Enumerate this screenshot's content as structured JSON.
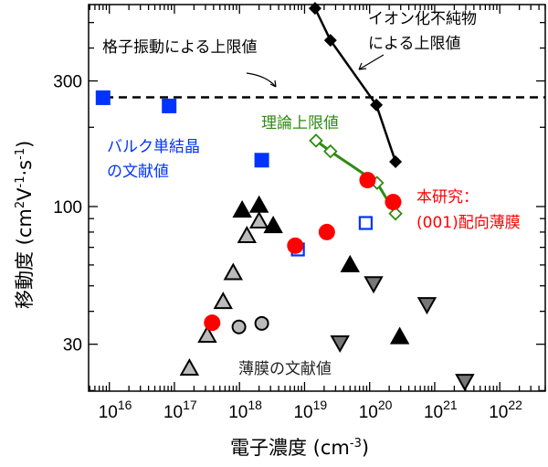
{
  "chart_data": {
    "type": "scatter",
    "xlabel": {
      "main": "電子濃度 (cm",
      "sup": "-3",
      "end": ")"
    },
    "ylabel": {
      "parts": [
        {
          "t": "移動度 (cm",
          "s": false
        },
        {
          "t": "2",
          "s": true
        },
        {
          "t": "V",
          "s": false
        },
        {
          "t": "-1",
          "s": true
        },
        {
          "t": "·s",
          "s": false
        },
        {
          "t": "-1",
          "s": true
        },
        {
          "t": ")",
          "s": false
        }
      ]
    },
    "x_scale": "log",
    "y_scale": "log",
    "xlim": [
      4800000000000000.0,
      5e+22
    ],
    "ylim": [
      19.9,
      585
    ],
    "grid": false,
    "x_ticks": [
      {
        "value": 1e+16,
        "base": "10",
        "exp": "16"
      },
      {
        "value": 1e+17,
        "base": "10",
        "exp": "17"
      },
      {
        "value": 1e+18,
        "base": "10",
        "exp": "18"
      },
      {
        "value": 1e+19,
        "base": "10",
        "exp": "19"
      },
      {
        "value": 1e+20,
        "base": "10",
        "exp": "20"
      },
      {
        "value": 1e+21,
        "base": "10",
        "exp": "21"
      },
      {
        "value": 1e+22,
        "base": "10",
        "exp": "22"
      }
    ],
    "y_ticks": [
      {
        "value": 30,
        "label": "30"
      },
      {
        "value": 100,
        "label": "100"
      },
      {
        "value": 300,
        "label": "300"
      }
    ],
    "reference_line": {
      "y": 260,
      "style": "dashed",
      "color": "#000000"
    },
    "series": [
      {
        "marker": "square-filled",
        "color": "#0033ff",
        "x": [
          8000000000000000.0,
          8.3e+16,
          2.2e+18
        ],
        "y": [
          259,
          241,
          150
        ]
      },
      {
        "marker": "square-open",
        "color": "#0033ff",
        "x": [
          7.9e+18,
          8.7e+19
        ],
        "y": [
          68.7,
          86.6
        ]
      },
      {
        "marker": "diamond-filled",
        "color": "#000000",
        "line": true,
        "x": [
          1.45e+19,
          2.5e+19,
          1.27e+20,
          2.5e+20
        ],
        "y": [
          566,
          428,
          243,
          148
        ]
      },
      {
        "marker": "diamond-open",
        "color": "#2e8b10",
        "line": true,
        "x": [
          1.5e+19,
          2.5e+19,
          1.3e+20,
          2.5e+20
        ],
        "y": [
          178,
          162,
          123,
          94
        ]
      },
      {
        "marker": "triangle-up",
        "color": "#bbbbbb",
        "x": [
          1.7e+17,
          3.2e+17,
          5.6e+17,
          8e+17,
          1.3e+18,
          2e+18
        ],
        "y": [
          24.3,
          32.4,
          43.5,
          56,
          77.4,
          88
        ]
      },
      {
        "marker": "triangle-up",
        "color": "#000000",
        "x": [
          1.1e+18,
          2e+18,
          3.3e+18,
          5e+19,
          2.9e+20
        ],
        "y": [
          96.8,
          101,
          84.5,
          60,
          32
        ]
      },
      {
        "marker": "circle",
        "color": "#bbbbbb",
        "x": [
          9.8e+17,
          2.2e+18
        ],
        "y": [
          34.9,
          36
        ]
      },
      {
        "marker": "triangle-down",
        "color": "#777777",
        "x": [
          3.5e+19,
          1.15e+20,
          7.6e+20,
          2.9e+21
        ],
        "y": [
          30.4,
          51,
          42.5,
          21.7
        ]
      },
      {
        "marker": "circle-filled",
        "color": "#ff0000",
        "x": [
          3.8e+17,
          7.2e+18,
          2.2e+19,
          9.3e+19,
          2.3e+20
        ],
        "y": [
          36.2,
          71,
          80,
          126,
          104
        ]
      }
    ],
    "annotations": {
      "phonon_limit": {
        "lines": [
          "格子振動による上限値"
        ],
        "color": "#000000"
      },
      "ionized_impurity_limit": {
        "lines": [
          "イオン化不純物",
          "による上限値"
        ],
        "color": "#000000"
      },
      "theoretical_limit": {
        "lines": [
          "理論上限値"
        ],
        "color": "#2e8b10"
      },
      "bulk_literature": {
        "lines": [
          "バルク単結晶",
          "の文献値"
        ],
        "color": "#0033ff"
      },
      "this_work": {
        "lines": [
          "本研究：",
          "(001)配向薄膜"
        ],
        "color": "#ff0000"
      },
      "film_literature": {
        "lines": [
          "薄膜の文献値"
        ],
        "color": "#000000"
      }
    }
  }
}
